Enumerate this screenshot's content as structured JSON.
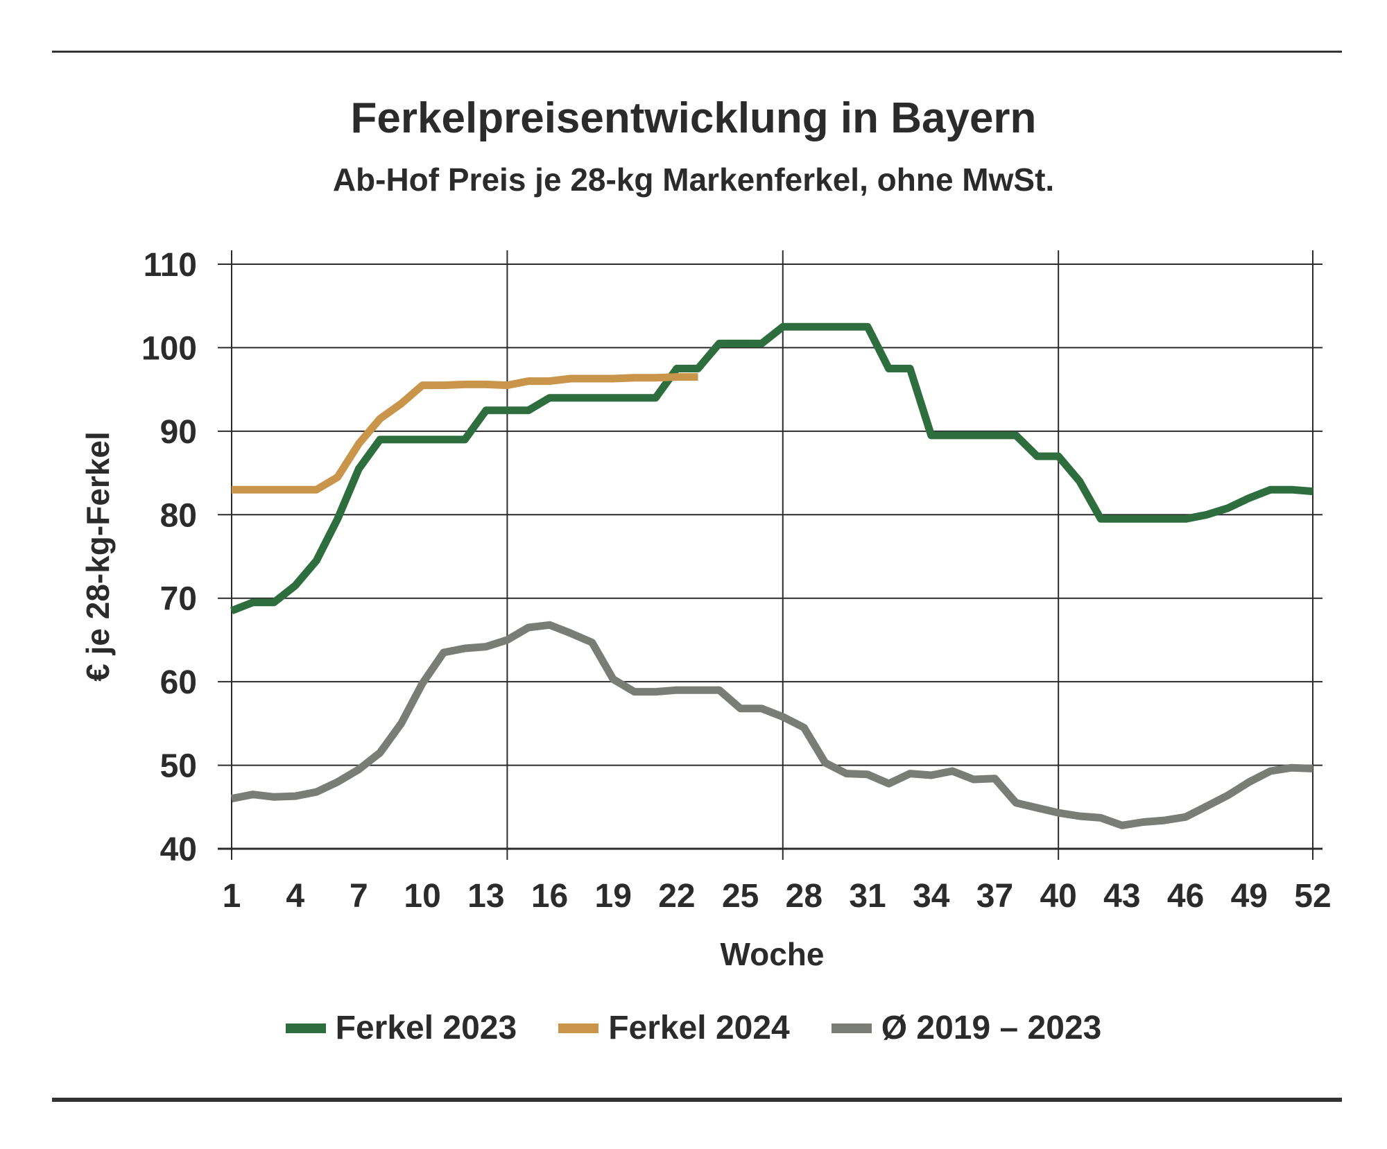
{
  "chart_data": {
    "type": "line",
    "title": "Ferkelpreisentwicklung in Bayern",
    "subtitle": "Ab-Hof Preis je 28-kg Markenferkel, ohne MwSt.",
    "xlabel": "Woche",
    "ylabel": "€ je 28-kg-Ferkel",
    "xlim": [
      1,
      52
    ],
    "ylim": [
      40,
      110
    ],
    "x_ticks": [
      "1",
      "4",
      "7",
      "10",
      "13",
      "16",
      "19",
      "22",
      "25",
      "28",
      "31",
      "34",
      "37",
      "40",
      "43",
      "46",
      "49",
      "52"
    ],
    "y_ticks": [
      "110",
      "100",
      "90",
      "80",
      "70",
      "60",
      "50",
      "40"
    ],
    "grid": true,
    "legend_position": "bottom",
    "series": [
      {
        "name": "Ferkel 2023",
        "color": "#2e6e3e",
        "x": [
          1,
          2,
          3,
          4,
          5,
          6,
          7,
          8,
          9,
          10,
          11,
          12,
          13,
          14,
          15,
          16,
          17,
          18,
          19,
          20,
          21,
          22,
          23,
          24,
          25,
          26,
          27,
          28,
          29,
          30,
          31,
          32,
          33,
          34,
          35,
          36,
          37,
          38,
          39,
          40,
          41,
          42,
          43,
          44,
          45,
          46,
          47,
          48,
          49,
          50,
          51,
          52
        ],
        "values": [
          68.5,
          69.5,
          69.5,
          71.5,
          74.5,
          79.5,
          85.5,
          89,
          89,
          89,
          89,
          89,
          92.5,
          92.5,
          92.5,
          94,
          94,
          94,
          94,
          94,
          94,
          97.5,
          97.5,
          100.5,
          100.5,
          100.5,
          102.5,
          102.5,
          102.5,
          102.5,
          102.5,
          97.5,
          97.5,
          89.5,
          89.5,
          89.5,
          89.5,
          89.5,
          87,
          87,
          84,
          79.5,
          79.5,
          79.5,
          79.5,
          79.5,
          80,
          80.8,
          82,
          83,
          83,
          82.8
        ]
      },
      {
        "name": "Ferkel 2024",
        "color": "#c9954a",
        "x": [
          1,
          2,
          3,
          4,
          5,
          6,
          7,
          8,
          9,
          10,
          11,
          12,
          13,
          14,
          15,
          16,
          17,
          18,
          19,
          20,
          21,
          22,
          23
        ],
        "values": [
          83,
          83,
          83,
          83,
          83,
          84.5,
          88.5,
          91.5,
          93.3,
          95.5,
          95.5,
          95.6,
          95.6,
          95.5,
          96,
          96,
          96.3,
          96.3,
          96.3,
          96.4,
          96.4,
          96.5,
          96.5
        ]
      },
      {
        "name": "Ø 2019 – 2023",
        "color": "#7a7d75",
        "x": [
          1,
          2,
          3,
          4,
          5,
          6,
          7,
          8,
          9,
          10,
          11,
          12,
          13,
          14,
          15,
          16,
          17,
          18,
          19,
          20,
          21,
          22,
          23,
          24,
          25,
          26,
          27,
          28,
          29,
          30,
          31,
          32,
          33,
          34,
          35,
          36,
          37,
          38,
          39,
          40,
          41,
          42,
          43,
          44,
          45,
          46,
          47,
          48,
          49,
          50,
          51,
          52
        ],
        "values": [
          46,
          46.5,
          46.2,
          46.3,
          46.8,
          48,
          49.5,
          51.5,
          55,
          59.8,
          63.5,
          64,
          64.2,
          65,
          66.5,
          66.8,
          65.8,
          64.7,
          60.3,
          58.8,
          58.8,
          59,
          59,
          59,
          56.8,
          56.8,
          55.8,
          54.5,
          50.3,
          49,
          48.9,
          47.8,
          49,
          48.8,
          49.3,
          48.3,
          48.4,
          45.5,
          44.9,
          44.3,
          43.9,
          43.7,
          42.8,
          43.2,
          43.4,
          43.8,
          45.1,
          46.4,
          48,
          49.3,
          49.7,
          49.6
        ]
      }
    ]
  }
}
